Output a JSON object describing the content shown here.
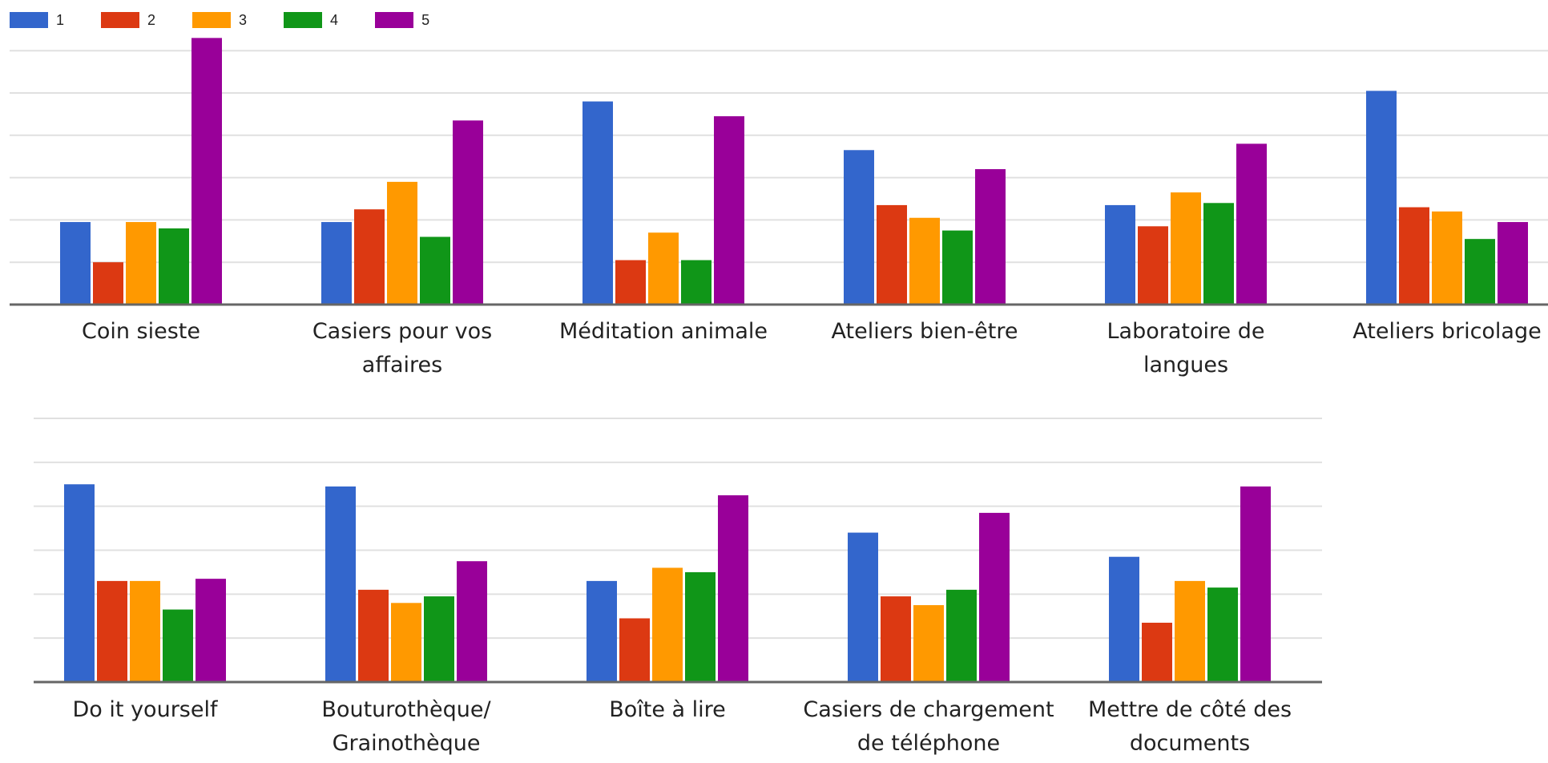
{
  "chart_data": [
    {
      "type": "bar",
      "categories": [
        [
          "Coin sieste"
        ],
        [
          "Casiers pour vos",
          "affaires"
        ],
        [
          "Méditation animale"
        ],
        [
          "Ateliers bien-être"
        ],
        [
          "Laboratoire de",
          "langues"
        ],
        [
          "Ateliers bricolage"
        ]
      ],
      "series": [
        {
          "name": "1",
          "values": [
            39,
            39,
            96,
            73,
            47,
            101
          ]
        },
        {
          "name": "2",
          "values": [
            20,
            45,
            21,
            47,
            37,
            46
          ]
        },
        {
          "name": "3",
          "values": [
            39,
            58,
            34,
            41,
            53,
            44
          ]
        },
        {
          "name": "4",
          "values": [
            36,
            32,
            21,
            35,
            48,
            31
          ]
        },
        {
          "name": "5",
          "values": [
            126,
            87,
            89,
            64,
            76,
            39
          ]
        }
      ],
      "ylim": [
        0,
        125
      ],
      "gridlines": [
        20,
        40,
        60,
        80,
        100,
        120
      ],
      "grid": true,
      "legend_position": "top-left"
    },
    {
      "type": "bar",
      "categories": [
        [
          "Do it yourself"
        ],
        [
          "Bouturothèque/",
          "Grainothèque"
        ],
        [
          "Boîte à lire"
        ],
        [
          "Casiers de chargement",
          "de téléphone"
        ],
        [
          "Mettre de côté des",
          "documents"
        ]
      ],
      "series": [
        {
          "name": "1",
          "values": [
            90,
            89,
            46,
            68,
            57
          ]
        },
        {
          "name": "2",
          "values": [
            46,
            42,
            29,
            39,
            27
          ]
        },
        {
          "name": "3",
          "values": [
            46,
            36,
            52,
            35,
            46
          ]
        },
        {
          "name": "4",
          "values": [
            33,
            39,
            50,
            42,
            43
          ]
        },
        {
          "name": "5",
          "values": [
            47,
            55,
            85,
            77,
            89
          ]
        }
      ],
      "ylim": [
        0,
        120
      ],
      "gridlines": [
        20,
        40,
        60,
        80,
        100,
        120
      ],
      "grid": true
    }
  ],
  "series_colors": [
    "#3366cc",
    "#dc3912",
    "#ff9900",
    "#109618",
    "#990099"
  ]
}
